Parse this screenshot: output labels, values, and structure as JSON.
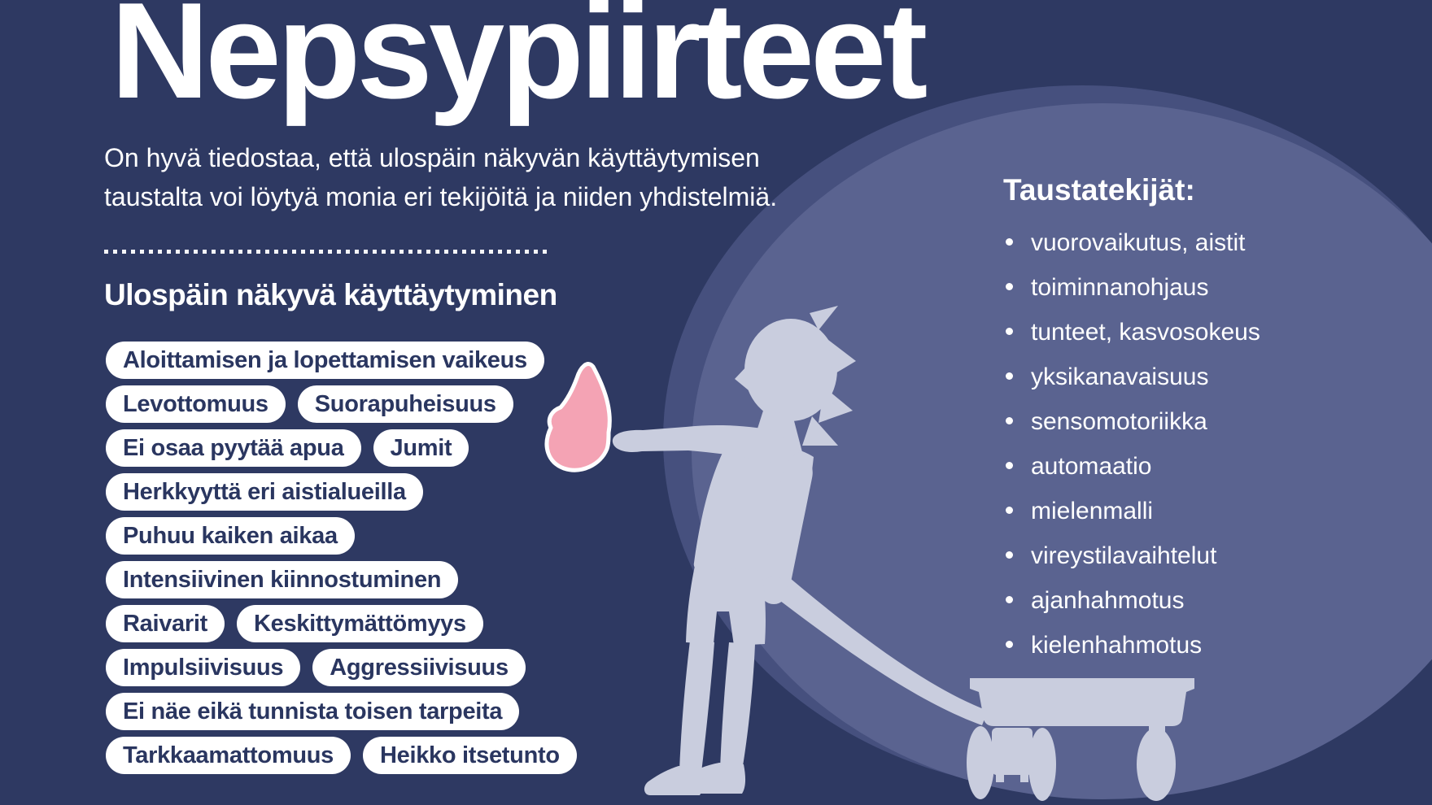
{
  "poster": {
    "title": "Nepsypiirteet",
    "intro_line1": "On hyvä tiedostaa, että ulospäin näkyvän käyttäytymisen",
    "intro_line2": "taustalta voi löytyä monia eri tekijöitä ja niiden yhdistelmiä.",
    "behavior": {
      "heading": "Ulospäin näkyvä käyttäytyminen",
      "pill_rows": [
        [
          "Aloittamisen ja lopettamisen vaikeus"
        ],
        [
          "Levottomuus",
          "Suorapuheisuus"
        ],
        [
          "Ei osaa pyytää apua",
          "Jumit"
        ],
        [
          "Herkkyyttä eri aistialueilla"
        ],
        [
          "Puhuu kaiken aikaa"
        ],
        [
          "Intensiivinen kiinnostuminen"
        ],
        [
          "Raivarit",
          "Keskittymättömyys"
        ],
        [
          "Impulsiivisuus",
          "Aggressiivisuus"
        ],
        [
          "Ei näe eikä tunnista toisen tarpeita"
        ],
        [
          "Tarkkaamattomuus",
          "Heikko itsetunto"
        ]
      ]
    },
    "background_factors": {
      "heading": "Taustatekijät:",
      "items": [
        "vuorovaikutus, aistit",
        "toiminnanohjaus",
        "tunteet, kasvosokeus",
        "yksikanavaisuus",
        "sensomotoriikka",
        "automaatio",
        "mielenmalli",
        "vireystilavaihtelut",
        "ajanhahmotus",
        "kielenhahmotus"
      ]
    },
    "illustration": {
      "description": "child silhouette reaching toward a pink butterfly while pulling a toy wagon"
    },
    "colors": {
      "background": "#2e3962",
      "circle_outer": "#46507e",
      "circle_inner": "#5a6390",
      "silhouette": "#c9cdde",
      "butterfly_pink": "#f4a3b4",
      "pill_bg": "#ffffff",
      "pill_text": "#2a3660",
      "text": "#ffffff"
    }
  }
}
